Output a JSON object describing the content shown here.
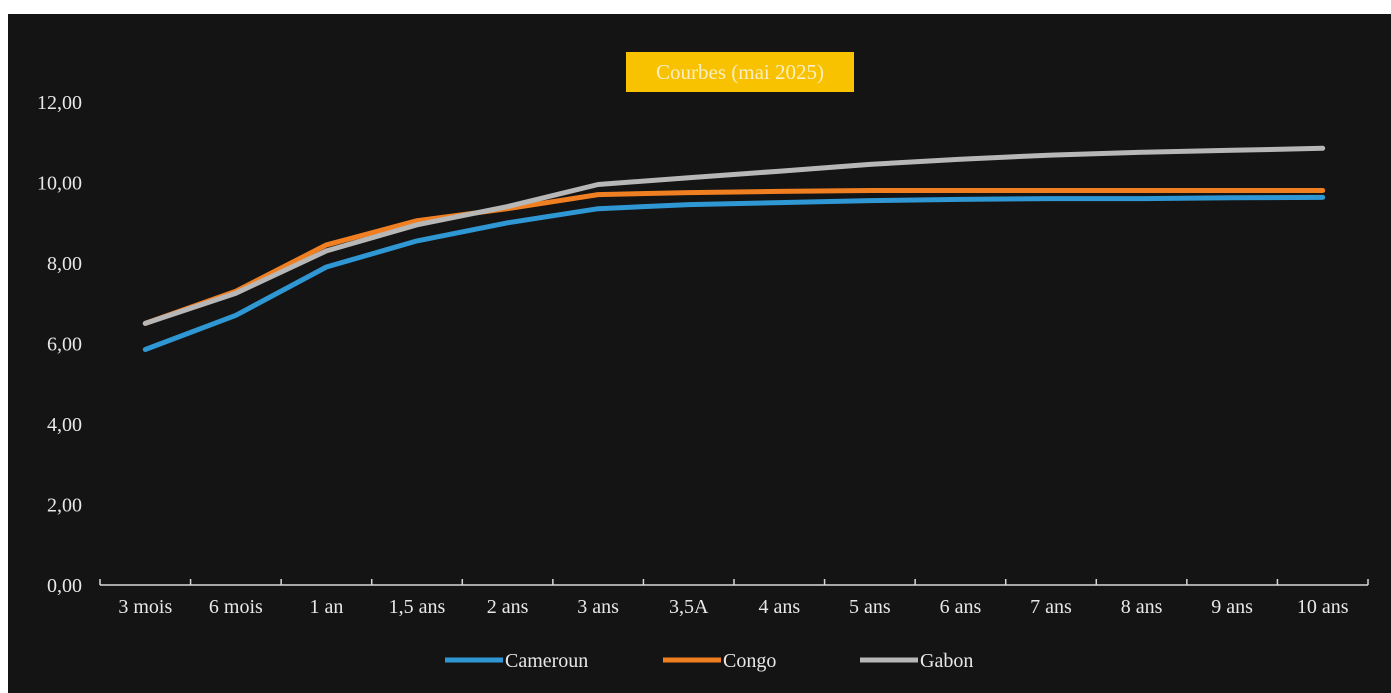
{
  "chart_data": {
    "type": "line",
    "title": "Courbes (mai 2025)",
    "xlabel": "",
    "ylabel": "",
    "categories": [
      "3 mois",
      "6 mois",
      "1 an",
      "1,5 ans",
      "2 ans",
      "3 ans",
      "3,5A",
      "4 ans",
      "5 ans",
      "6 ans",
      "7 ans",
      "8 ans",
      "9 ans",
      "10 ans"
    ],
    "ylim": [
      0,
      12
    ],
    "yticks": [
      "0,00",
      "2,00",
      "4,00",
      "6,00",
      "8,00",
      "10,00",
      "12,00"
    ],
    "grid": false,
    "legend_position": "bottom",
    "series": [
      {
        "name": "Cameroun",
        "color": "#2f97d3",
        "values": [
          5.85,
          6.7,
          7.9,
          8.55,
          9.0,
          9.35,
          9.45,
          9.5,
          9.55,
          9.58,
          9.6,
          9.6,
          9.62,
          9.63
        ]
      },
      {
        "name": "Congo",
        "color": "#f07f22",
        "values": [
          6.5,
          7.3,
          8.45,
          9.05,
          9.35,
          9.7,
          9.75,
          9.78,
          9.8,
          9.8,
          9.8,
          9.8,
          9.8,
          9.8
        ]
      },
      {
        "name": "Gabon",
        "color": "#b7b7b7",
        "values": [
          6.5,
          7.25,
          8.3,
          8.95,
          9.4,
          9.95,
          10.12,
          10.28,
          10.45,
          10.58,
          10.68,
          10.75,
          10.8,
          10.85
        ]
      }
    ]
  }
}
